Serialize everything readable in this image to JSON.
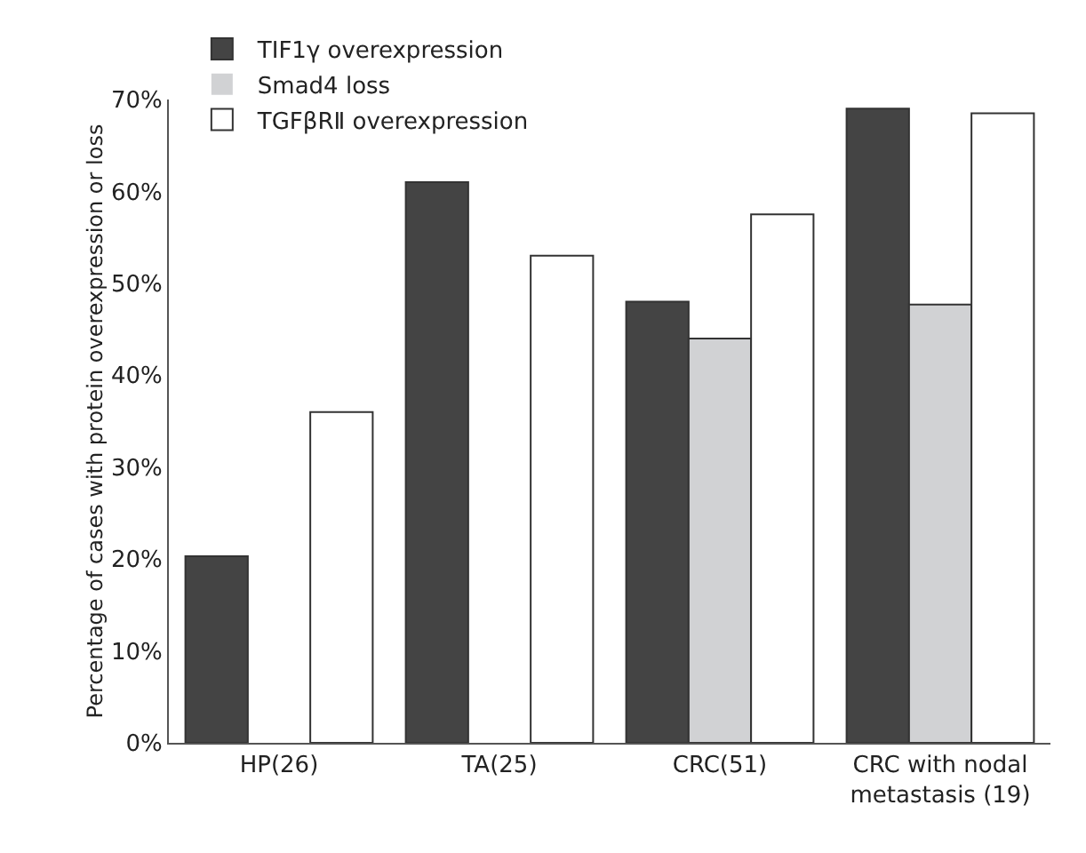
{
  "chart_data": {
    "type": "bar",
    "ylabel": "Percentage of cases with protein overexpression or loss",
    "categories": [
      "HP(26)",
      "TA(25)",
      "CRC(51)",
      "CRC with nodal metastasis (19)"
    ],
    "series": [
      {
        "name": "TIF1γ overexpression",
        "color": "#444444",
        "values": [
          20.3,
          61,
          48,
          69
        ]
      },
      {
        "name": "Smad4 loss",
        "color": "#d1d2d4",
        "values": [
          0,
          0,
          44,
          47.7
        ]
      },
      {
        "name": "TGFβRⅡ overexpression",
        "color": "#ffffff",
        "values": [
          36,
          53,
          57.5,
          68.5
        ]
      }
    ],
    "ylim": [
      0,
      70
    ],
    "yticks": [
      {
        "value": 0,
        "label": "0%"
      },
      {
        "value": 10,
        "label": "10%"
      },
      {
        "value": 20,
        "label": "20%"
      },
      {
        "value": 30,
        "label": "30%"
      },
      {
        "value": 40,
        "label": "40%"
      },
      {
        "value": 50,
        "label": "50%"
      },
      {
        "value": 60,
        "label": "60%"
      },
      {
        "value": 70,
        "label": "70%"
      }
    ],
    "grid": false,
    "legend": "top left"
  }
}
